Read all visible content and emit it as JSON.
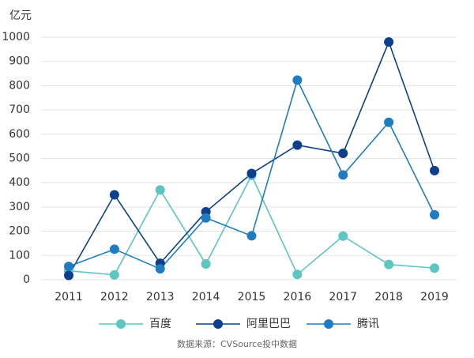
{
  "chart_data": {
    "type": "line",
    "y_label": "亿元",
    "source": "数据来源：CVSource投中数据",
    "categories": [
      "2011",
      "2012",
      "2013",
      "2014",
      "2015",
      "2016",
      "2017",
      "2018",
      "2019"
    ],
    "series": [
      {
        "name": "百度",
        "color": "#5cc6c0",
        "values": [
          37,
          20,
          370,
          65,
          430,
          22,
          180,
          63,
          48
        ]
      },
      {
        "name": "阿里巴巴",
        "color": "#0e3f8c",
        "values": [
          18,
          350,
          68,
          280,
          438,
          555,
          521,
          980,
          450
        ]
      },
      {
        "name": "腾讯",
        "color": "#1e7cc0",
        "values": [
          55,
          126,
          45,
          255,
          181,
          823,
          432,
          649,
          268
        ]
      }
    ],
    "ylim": [
      0,
      1000
    ],
    "yticks": [
      0,
      100,
      200,
      300,
      400,
      500,
      600,
      700,
      800,
      900,
      1000
    ],
    "grid": true
  }
}
